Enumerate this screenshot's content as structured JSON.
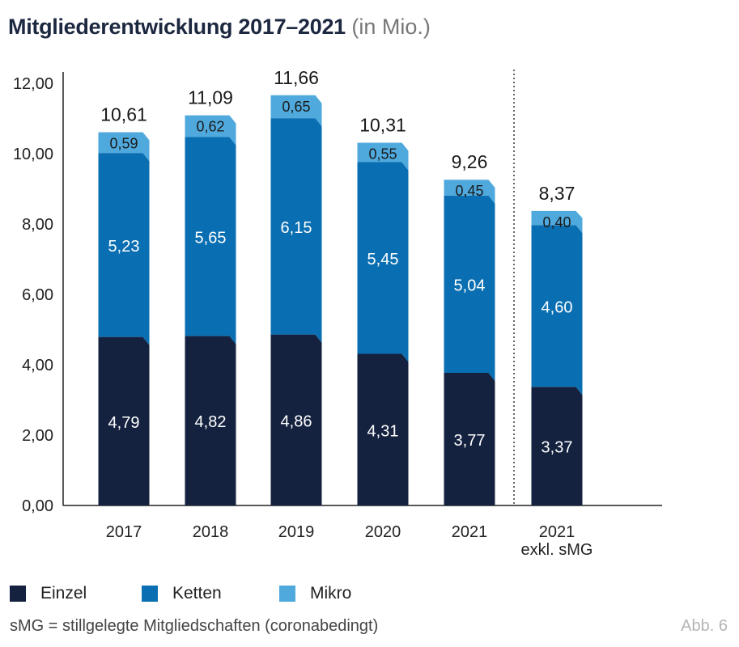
{
  "title": "Mitgliederentwicklung 2017–2021",
  "subtitle": "(in Mio.)",
  "chart_data": {
    "type": "bar",
    "stacked": true,
    "categories": [
      "2017",
      "2018",
      "2019",
      "2020",
      "2021",
      "2021\nexkl. sMG"
    ],
    "series": [
      {
        "name": "Einzel",
        "values": [
          4.79,
          4.82,
          4.86,
          4.31,
          3.77,
          3.37
        ],
        "color": "#14223f"
      },
      {
        "name": "Ketten",
        "values": [
          5.23,
          5.65,
          6.15,
          5.45,
          5.04,
          4.6
        ],
        "color": "#0a6fb2"
      },
      {
        "name": "Mikro",
        "values": [
          0.59,
          0.62,
          0.65,
          0.55,
          0.45,
          0.4
        ],
        "color": "#4fa9dc"
      }
    ],
    "value_labels": [
      [
        "4,79",
        "4,82",
        "4,86",
        "4,31",
        "3,77",
        "3,37"
      ],
      [
        "5,23",
        "5,65",
        "6,15",
        "5,45",
        "5,04",
        "4,60"
      ],
      [
        "0,59",
        "0,62",
        "0,65",
        "0,55",
        "0,45",
        "0,40"
      ]
    ],
    "totals": [
      10.61,
      11.09,
      11.66,
      10.31,
      9.26,
      8.37
    ],
    "total_labels": [
      "10,61",
      "11,09",
      "11,66",
      "10,31",
      "9,26",
      "8,37"
    ],
    "ylim": [
      0,
      12
    ],
    "yticks": [
      0,
      2,
      4,
      6,
      8,
      10,
      12
    ],
    "ytick_labels": [
      "0,00",
      "2,00",
      "4,00",
      "6,00",
      "8,00",
      "10,00",
      "12,00"
    ],
    "separator_before_last": true,
    "grid": false,
    "legend_position": "bottom-left"
  },
  "legend": [
    "Einzel",
    "Ketten",
    "Mikro"
  ],
  "footnote": "sMG = stillgelegte Mitgliedschaften (coronabedingt)",
  "figure_number": "Abb. 6"
}
